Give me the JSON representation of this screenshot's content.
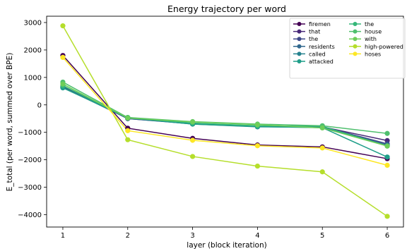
{
  "chart_data": {
    "type": "line",
    "title": "Energy trajectory per word",
    "xlabel": "layer (block iteration)",
    "ylabel": "E_total (per word, summed over BPE)",
    "x": [
      1,
      2,
      3,
      4,
      5,
      6
    ],
    "xlim": [
      0.75,
      6.25
    ],
    "ylim": [
      -4450,
      3230
    ],
    "xticks": [
      1,
      2,
      3,
      4,
      5,
      6
    ],
    "yticks": [
      -4000,
      -3000,
      -2000,
      -1000,
      0,
      1000,
      2000,
      3000
    ],
    "grid": false,
    "legend_position": "top-right",
    "legend_columns": 2,
    "series": [
      {
        "name": "firemen",
        "color": "#440154",
        "values": [
          1800,
          -850,
          -1220,
          -1460,
          -1530,
          -1960
        ]
      },
      {
        "name": "that",
        "color": "#482878",
        "values": [
          680,
          -500,
          -680,
          -790,
          -800,
          -1300
        ]
      },
      {
        "name": "the",
        "color": "#3e4989",
        "values": [
          660,
          -490,
          -680,
          -780,
          -790,
          -1420
        ]
      },
      {
        "name": "residents",
        "color": "#31688e",
        "values": [
          640,
          -500,
          -690,
          -790,
          -800,
          -1460
        ]
      },
      {
        "name": "called",
        "color": "#26828e",
        "values": [
          630,
          -480,
          -700,
          -800,
          -820,
          -1480
        ]
      },
      {
        "name": "attacked",
        "color": "#1f9e89",
        "values": [
          620,
          -470,
          -700,
          -790,
          -830,
          -1900
        ]
      },
      {
        "name": "the",
        "color": "#35b779",
        "values": [
          700,
          -460,
          -660,
          -760,
          -780,
          -1500
        ]
      },
      {
        "name": "house",
        "color": "#4fbf6e",
        "values": [
          830,
          -460,
          -610,
          -700,
          -760,
          -1040
        ]
      },
      {
        "name": "with",
        "color": "#6ece58",
        "values": [
          760,
          -480,
          -620,
          -720,
          -840,
          -1500
        ]
      },
      {
        "name": "high-powered",
        "color": "#b5de2b",
        "values": [
          2880,
          -1270,
          -1880,
          -2230,
          -2440,
          -4060
        ]
      },
      {
        "name": "hoses",
        "color": "#fde725",
        "values": [
          1730,
          -940,
          -1290,
          -1490,
          -1570,
          -2200
        ]
      }
    ]
  }
}
